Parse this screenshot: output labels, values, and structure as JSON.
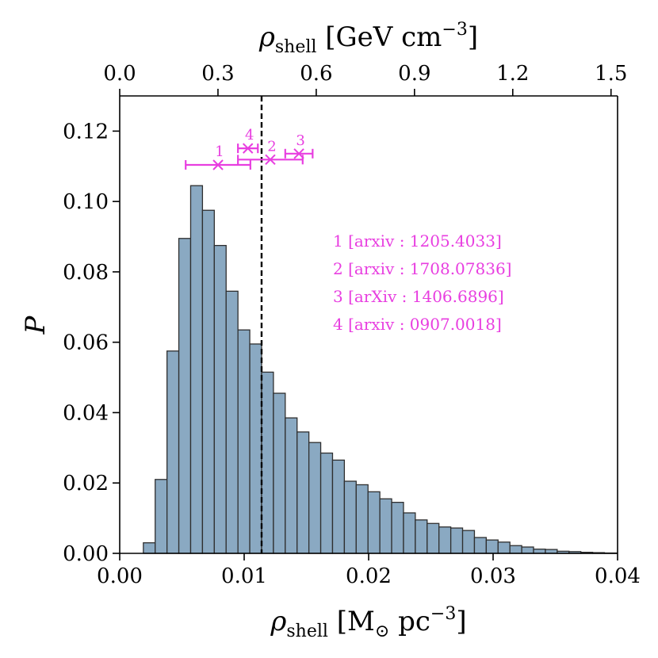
{
  "chart_data": {
    "type": "bar",
    "title": "",
    "xlabel": "ρshell [M⊙ pc−3]",
    "xlabel_parts": {
      "symbol": "ρ",
      "sub": "shell",
      "unit_open": " [M",
      "unit_sub": "⊙",
      "unit_mid": " pc",
      "unit_sup": "−3",
      "unit_close": "]"
    },
    "ylabel": "P",
    "x2label": "ρshell [GeV cm−3]",
    "x2label_parts": {
      "symbol": "ρ",
      "sub": "shell",
      "unit_open": " [GeV cm",
      "unit_sup": "−3",
      "unit_close": "]"
    },
    "xlim": [
      0.0,
      0.04
    ],
    "ylim": [
      0.0,
      0.13
    ],
    "x2lim": [
      0.0,
      1.52
    ],
    "x_ticks": [
      "0.00",
      "0.01",
      "0.02",
      "0.03",
      "0.04"
    ],
    "x_tick_values": [
      0.0,
      0.01,
      0.02,
      0.03,
      0.04
    ],
    "y_ticks": [
      "0.00",
      "0.02",
      "0.04",
      "0.06",
      "0.08",
      "0.10",
      "0.12"
    ],
    "y_tick_values": [
      0.0,
      0.02,
      0.04,
      0.06,
      0.08,
      0.1,
      0.12
    ],
    "x2_ticks": [
      "0.0",
      "0.3",
      "0.6",
      "0.9",
      "1.2",
      "1.5"
    ],
    "x2_tick_values": [
      0.0,
      0.3,
      0.6,
      0.9,
      1.2,
      1.5
    ],
    "bin_start": 0.0019,
    "bin_width": 0.00095,
    "values": [
      0.003,
      0.021,
      0.0575,
      0.0895,
      0.1045,
      0.0975,
      0.0875,
      0.0745,
      0.0635,
      0.0595,
      0.0515,
      0.0455,
      0.0385,
      0.0345,
      0.0315,
      0.0285,
      0.0265,
      0.0205,
      0.0195,
      0.0175,
      0.0155,
      0.0145,
      0.0115,
      0.0095,
      0.0085,
      0.0075,
      0.0072,
      0.0065,
      0.0045,
      0.0038,
      0.0032,
      0.0022,
      0.0018,
      0.0012,
      0.0011,
      0.0006,
      0.0005,
      0.0003,
      0.0002,
      0.0001
    ],
    "vline_x": 0.0114,
    "measurements": [
      {
        "label": "1",
        "x": 0.0079,
        "xerr_low": 0.0026,
        "xerr_high": 0.0026,
        "y": 0.1104
      },
      {
        "label": "2",
        "x": 0.0121,
        "xerr_low": 0.0026,
        "xerr_high": 0.0026,
        "y": 0.1119
      },
      {
        "label": "3",
        "x": 0.0144,
        "xerr_low": 0.0011,
        "xerr_high": 0.0011,
        "y": 0.1136
      },
      {
        "label": "4",
        "x": 0.0103,
        "xerr_low": 0.0008,
        "xerr_high": 0.0008,
        "y": 0.1151
      }
    ],
    "legend": [
      "1  [arxiv : 1205.4033]",
      "2  [arxiv : 1708.07836]",
      "3  [arXiv : 1406.6896]",
      "4  [arxiv : 0907.0018]"
    ],
    "colors": {
      "bar_fill": "#8aa9c2",
      "bar_edge": "#2f2f2f",
      "measurement": "#e83ee0",
      "vline": "#000000"
    },
    "grid": false
  }
}
